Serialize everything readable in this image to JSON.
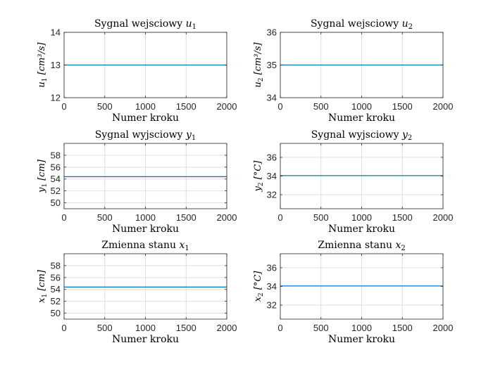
{
  "colors": {
    "line": "#0072BD",
    "grid": "#dfdfdf",
    "axis": "#262626"
  },
  "chart_data": [
    {
      "type": "line",
      "title": {
        "pre": "Sygnal wejsciowy ",
        "var": "u",
        "sub": "1"
      },
      "ylabel": {
        "var": "u",
        "sub": "1",
        "unit": "[cm³/s]"
      },
      "xlabel": "Numer kroku",
      "xlim": [
        0,
        2000
      ],
      "ylim": [
        12,
        14
      ],
      "xticks": [
        "0",
        "500",
        "1000",
        "1500",
        "2000"
      ],
      "yticks": [
        "12",
        "13",
        "14"
      ],
      "grid": true,
      "x": [
        0,
        2000
      ],
      "y": [
        13,
        13
      ]
    },
    {
      "type": "line",
      "title": {
        "pre": "Sygnal wejsciowy ",
        "var": "u",
        "sub": "2"
      },
      "ylabel": {
        "var": "u",
        "sub": "2",
        "unit": "[cm³/s]"
      },
      "xlabel": "Numer kroku",
      "xlim": [
        0,
        2000
      ],
      "ylim": [
        34,
        36
      ],
      "xticks": [
        "0",
        "500",
        "1000",
        "1500",
        "2000"
      ],
      "yticks": [
        "34",
        "35",
        "36"
      ],
      "grid": true,
      "x": [
        0,
        2000
      ],
      "y": [
        35,
        35
      ]
    },
    {
      "type": "line",
      "title": {
        "pre": "Sygnal wyjsciowy ",
        "var": "y",
        "sub": "1"
      },
      "ylabel": {
        "var": "y",
        "sub": "1",
        "unit": "[cm]"
      },
      "xlabel": "Numer kroku",
      "xlim": [
        0,
        2000
      ],
      "ylim": [
        49,
        60
      ],
      "xticks": [
        "0",
        "500",
        "1000",
        "1500",
        "2000"
      ],
      "yticks": [
        "50",
        "52",
        "54",
        "56",
        "58"
      ],
      "grid": true,
      "x": [
        0,
        2000
      ],
      "y": [
        54.4,
        54.4
      ]
    },
    {
      "type": "line",
      "title": {
        "pre": "Sygnal wyjsciowy ",
        "var": "y",
        "sub": "2"
      },
      "ylabel": {
        "var": "y",
        "sub": "2",
        "unit": "[°C]"
      },
      "xlabel": "Numer kroku",
      "xlim": [
        0,
        2000
      ],
      "ylim": [
        30.5,
        37.5
      ],
      "xticks": [
        "0",
        "500",
        "1000",
        "1500",
        "2000"
      ],
      "yticks": [
        "32",
        "34",
        "36"
      ],
      "grid": true,
      "x": [
        0,
        2000
      ],
      "y": [
        34.05,
        34.05
      ]
    },
    {
      "type": "line",
      "title": {
        "pre": "Zmienna stanu ",
        "var": "x",
        "sub": "1"
      },
      "ylabel": {
        "var": "x",
        "sub": "1",
        "unit": "[cm]"
      },
      "xlabel": "Numer kroku",
      "xlim": [
        0,
        2000
      ],
      "ylim": [
        49,
        60
      ],
      "xticks": [
        "0",
        "500",
        "1000",
        "1500",
        "2000"
      ],
      "yticks": [
        "50",
        "52",
        "54",
        "56",
        "58"
      ],
      "grid": true,
      "x": [
        0,
        2000
      ],
      "y": [
        54.4,
        54.4
      ]
    },
    {
      "type": "line",
      "title": {
        "pre": "Zmienna stanu ",
        "var": "x",
        "sub": "2"
      },
      "ylabel": {
        "var": "x",
        "sub": "2",
        "unit": "[°C]"
      },
      "xlabel": "Numer kroku",
      "xlim": [
        0,
        2000
      ],
      "ylim": [
        30.5,
        37.5
      ],
      "xticks": [
        "0",
        "500",
        "1000",
        "1500",
        "2000"
      ],
      "yticks": [
        "32",
        "34",
        "36"
      ],
      "grid": true,
      "x": [
        0,
        2000
      ],
      "y": [
        34.05,
        34.05
      ]
    }
  ]
}
